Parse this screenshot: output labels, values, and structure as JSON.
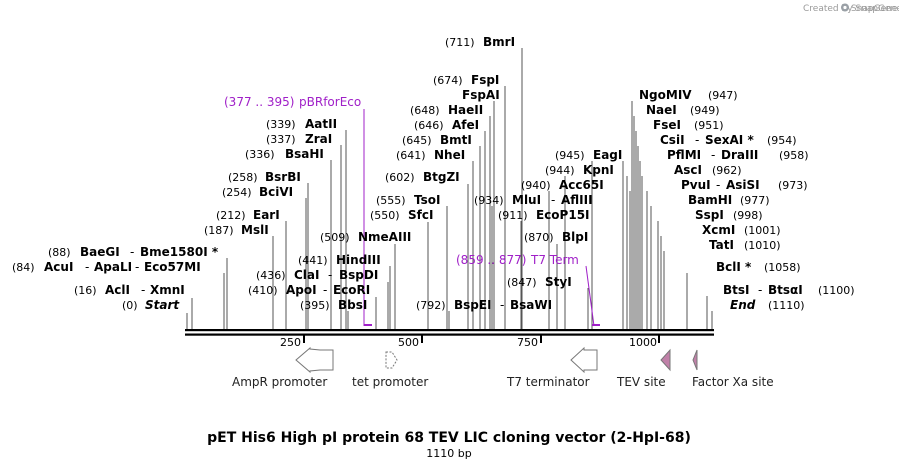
{
  "credit": "Created by SnapGene",
  "title": "pET His6 High pI protein 68 TEV LIC cloning vector (2-HpI-68)",
  "length_label": "1110 bp",
  "sequence_length": 1110,
  "axis_ticks": [
    "250",
    "500",
    "750",
    "1000"
  ],
  "colors": {
    "primer": "#a020c8",
    "feature_fill": "#c080a8",
    "line": "#000000"
  },
  "sites": [
    {
      "num": "(0)",
      "names": [
        "Start"
      ],
      "pos": 0,
      "italic": true
    },
    {
      "num": "(16)",
      "names": [
        "AclI",
        "XmnI"
      ],
      "pos": 16
    },
    {
      "num": "(84)",
      "names": [
        "AcuI",
        "ApaLI",
        "Eco57MI"
      ],
      "pos": 84
    },
    {
      "num": "(88)",
      "names": [
        "BaeGI",
        "Bme1580I *"
      ],
      "pos": 88
    },
    {
      "num": "(187)",
      "names": [
        "MslI"
      ],
      "pos": 187
    },
    {
      "num": "(212)",
      "names": [
        "EarI"
      ],
      "pos": 212
    },
    {
      "num": "(254)",
      "names": [
        "BciVI"
      ],
      "pos": 254
    },
    {
      "num": "(258)",
      "names": [
        "BsrBI"
      ],
      "pos": 258
    },
    {
      "num": "(336)",
      "names": [
        "BsaHI"
      ],
      "pos": 336
    },
    {
      "num": "(337)",
      "names": [
        "ZraI"
      ],
      "pos": 337
    },
    {
      "num": "(339)",
      "names": [
        "AatII"
      ],
      "pos": 339
    },
    {
      "num": "(395)",
      "names": [
        "BbsI"
      ],
      "pos": 395
    },
    {
      "num": "(410)",
      "names": [
        "ApoI",
        "EcoRI"
      ],
      "pos": 410
    },
    {
      "num": "(436)",
      "names": [
        "ClaI",
        "BspDI"
      ],
      "pos": 436
    },
    {
      "num": "(441)",
      "names": [
        "HindIII"
      ],
      "pos": 441
    },
    {
      "num": "(509)",
      "names": [
        "NmeAIII"
      ],
      "pos": 509
    },
    {
      "num": "(550)",
      "names": [
        "SfcI"
      ],
      "pos": 550
    },
    {
      "num": "(555)",
      "names": [
        "TsoI"
      ],
      "pos": 555
    },
    {
      "num": "(602)",
      "names": [
        "BtgZI"
      ],
      "pos": 602
    },
    {
      "num": "(641)",
      "names": [
        "NheI"
      ],
      "pos": 641
    },
    {
      "num": "(645)",
      "names": [
        "BmtI"
      ],
      "pos": 645
    },
    {
      "num": "(646)",
      "names": [
        "AfeI"
      ],
      "pos": 646
    },
    {
      "num": "(648)",
      "names": [
        "HaeII"
      ],
      "pos": 648
    },
    {
      "num": "(674)",
      "names": [
        "FspI"
      ],
      "pos": 674
    },
    {
      "num": "(674)",
      "names": [
        "FspAI"
      ],
      "pos": 674,
      "hide_num": true
    },
    {
      "num": "(711)",
      "names": [
        "BmrI"
      ],
      "pos": 711
    },
    {
      "num": "(792)",
      "names": [
        "BspEI",
        "BsaWI"
      ],
      "pos": 792
    },
    {
      "num": "(847)",
      "names": [
        "StyI"
      ],
      "pos": 847
    },
    {
      "num": "(870)",
      "names": [
        "BlpI"
      ],
      "pos": 870
    },
    {
      "num": "(911)",
      "names": [
        "EcoP15I"
      ],
      "pos": 911
    },
    {
      "num": "(934)",
      "names": [
        "MluI",
        "AflIII"
      ],
      "pos": 934
    },
    {
      "num": "(940)",
      "names": [
        "Acc65I"
      ],
      "pos": 940
    },
    {
      "num": "(944)",
      "names": [
        "KpnI"
      ],
      "pos": 944
    },
    {
      "num": "(945)",
      "names": [
        "EagI"
      ],
      "pos": 945
    },
    {
      "num": "(947)",
      "names": [
        "NgoMIV"
      ],
      "pos": 947
    },
    {
      "num": "(949)",
      "names": [
        "NaeI"
      ],
      "pos": 949
    },
    {
      "num": "(951)",
      "names": [
        "FseI"
      ],
      "pos": 951
    },
    {
      "num": "(954)",
      "names": [
        "CsiI",
        "SexAI *"
      ],
      "pos": 954
    },
    {
      "num": "(958)",
      "names": [
        "PflMI",
        "DraIII"
      ],
      "pos": 958
    },
    {
      "num": "(962)",
      "names": [
        "AscI"
      ],
      "pos": 962
    },
    {
      "num": "(973)",
      "names": [
        "PvuI",
        "AsiSI"
      ],
      "pos": 973
    },
    {
      "num": "(977)",
      "names": [
        "BamHI"
      ],
      "pos": 977
    },
    {
      "num": "(998)",
      "names": [
        "SspI"
      ],
      "pos": 998
    },
    {
      "num": "(1001)",
      "names": [
        "XcmI"
      ],
      "pos": 1001
    },
    {
      "num": "(1010)",
      "names": [
        "TatI"
      ],
      "pos": 1010
    },
    {
      "num": "(1058)",
      "names": [
        "BclI *"
      ],
      "pos": 1058
    },
    {
      "num": "(1100)",
      "names": [
        "BtsI",
        "BtsαI"
      ],
      "pos": 1100
    },
    {
      "num": "(1110)",
      "names": [
        "End"
      ],
      "pos": 1110,
      "italic": true
    }
  ],
  "primers": [
    {
      "range": "(377 .. 395)",
      "name": "pBRforEco"
    },
    {
      "range": "(859 .. 877)",
      "name": "T7 Term"
    }
  ],
  "features": [
    {
      "name": "AmpR promoter"
    },
    {
      "name": "tet promoter"
    },
    {
      "name": "T7 terminator"
    },
    {
      "name": "TEV site"
    },
    {
      "name": "Factor Xa site"
    }
  ]
}
